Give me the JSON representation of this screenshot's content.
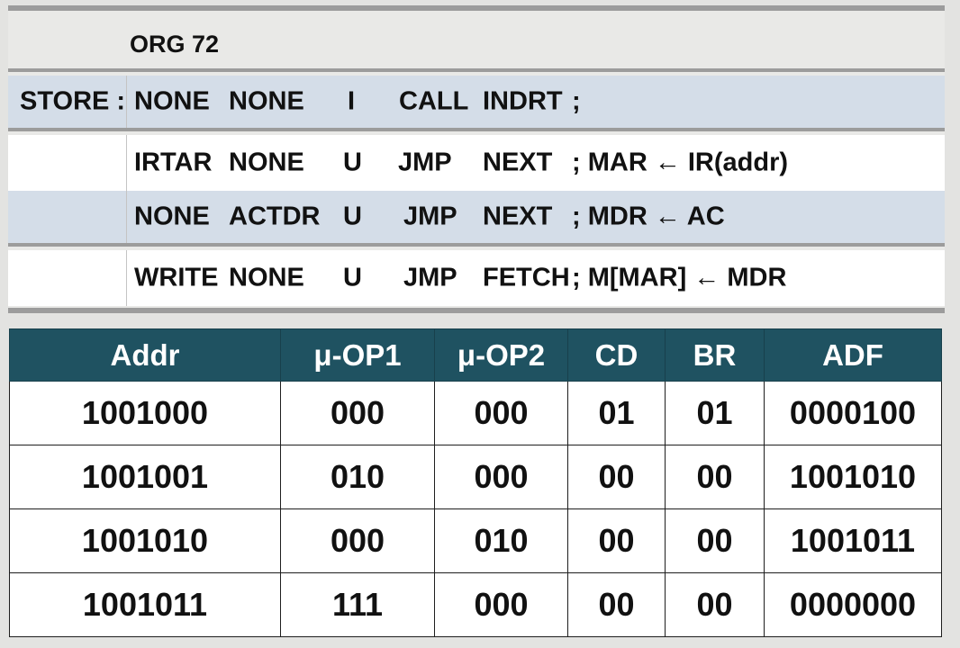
{
  "listing": {
    "org": "ORG 72",
    "rows": [
      {
        "label": "STORE :",
        "op1": "NONE",
        "op2": "NONE",
        "cd": "I",
        "br": "CALL",
        "ad": "INDRT",
        "comment": ";"
      },
      {
        "label": "",
        "op1": "IRTAR",
        "op2": "NONE",
        "cd": "U",
        "br": "JMP",
        "ad": "NEXT",
        "comment": "; MAR ← IR(addr)"
      },
      {
        "label": "",
        "op1": "NONE",
        "op2": "ACTDR",
        "cd": "U",
        "br": "JMP",
        "ad": "NEXT",
        "comment": "; MDR ← AC"
      },
      {
        "label": "",
        "op1": "WRITE",
        "op2": "NONE",
        "cd": "U",
        "br": "JMP",
        "ad": "FETCH",
        "comment": "; M[MAR] ← MDR"
      }
    ]
  },
  "table": {
    "headers": [
      "Addr",
      "μ-OP1",
      "μ-OP2",
      "CD",
      "BR",
      "ADF"
    ],
    "rows": [
      [
        "1001000",
        "000",
        "000",
        "01",
        "01",
        "0000100"
      ],
      [
        "1001001",
        "010",
        "000",
        "00",
        "00",
        "1001010"
      ],
      [
        "1001010",
        "000",
        "010",
        "00",
        "00",
        "1001011"
      ],
      [
        "1001011",
        "111",
        "000",
        "00",
        "00",
        "0000000"
      ]
    ]
  },
  "colors": {
    "background": "#e3e3e1",
    "shaded_row": "#d4dde8",
    "header_fill": "#1f5261",
    "rule": "#9c9c9c"
  }
}
